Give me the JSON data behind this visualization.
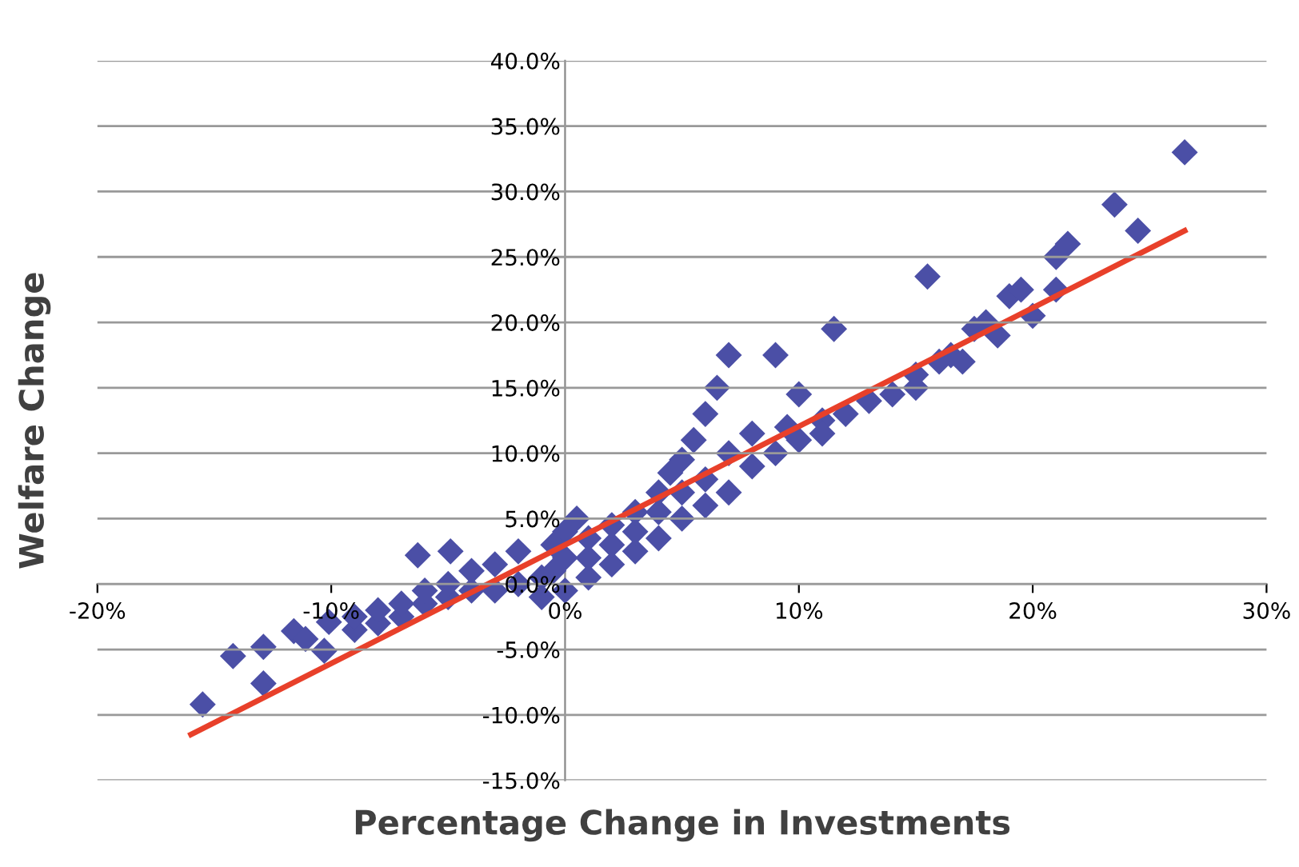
{
  "chart_data": {
    "type": "scatter",
    "xlabel": "Percentage Change in Investments",
    "ylabel": "Welfare Change",
    "xlim": [
      -20,
      30
    ],
    "ylim": [
      -15,
      40
    ],
    "xticks": [
      {
        "value": -20,
        "label": "-20%"
      },
      {
        "value": -10,
        "label": "-10%"
      },
      {
        "value": 0,
        "label": "0%"
      },
      {
        "value": 10,
        "label": "10%"
      },
      {
        "value": 20,
        "label": "20%"
      },
      {
        "value": 30,
        "label": "30%"
      }
    ],
    "yticks": [
      {
        "value": -15,
        "label": "-15.0%"
      },
      {
        "value": -10,
        "label": "-10.0%"
      },
      {
        "value": -5,
        "label": "-5.0%"
      },
      {
        "value": 0,
        "label": "0.0%"
      },
      {
        "value": 5,
        "label": "5.0%"
      },
      {
        "value": 10,
        "label": "10.0%"
      },
      {
        "value": 15,
        "label": "15.0%"
      },
      {
        "value": 20,
        "label": "20.0%"
      },
      {
        "value": 25,
        "label": "25.0%"
      },
      {
        "value": 30,
        "label": "30.0%"
      },
      {
        "value": 35,
        "label": "35.0%"
      },
      {
        "value": 40,
        "label": "40.0%"
      }
    ],
    "grid": "y",
    "marker": "diamond",
    "series": [
      {
        "color": "#4b4fa6",
        "x": [
          -15.5,
          -14.2,
          -12.9,
          -12.9,
          -11.6,
          -11.1,
          -10.3,
          -10.1,
          -6.3,
          -4.9,
          -9,
          -8,
          -7,
          -6,
          -5,
          -4,
          -3,
          -2,
          -1,
          -0.5,
          0,
          0,
          0.5,
          -0.5,
          -2,
          -3,
          -4,
          -5,
          -6,
          -7,
          -8,
          -9,
          -1,
          0,
          1,
          1,
          1,
          2,
          2,
          2,
          3,
          3,
          3,
          4,
          4,
          4,
          4.5,
          5,
          5,
          5,
          5.5,
          6,
          6,
          6.5,
          6,
          7,
          7,
          7,
          8,
          8,
          9,
          9,
          9.5,
          10,
          10,
          11,
          11.5,
          11,
          12,
          13,
          14,
          15,
          15.5,
          15,
          16,
          16.5,
          17,
          17.5,
          18,
          18.5,
          19,
          19.5,
          20,
          21,
          21,
          21.5,
          23.5,
          24.5,
          26.5
        ],
        "values": [
          -9.2,
          -5.5,
          -4.8,
          -7.6,
          -3.6,
          -4.2,
          -5.1,
          -2.9,
          2.2,
          2.5,
          -3.5,
          -3,
          -2.5,
          -1.5,
          -1,
          -0.5,
          -0.5,
          0,
          0.5,
          1,
          2,
          4,
          5,
          3,
          2.5,
          1.5,
          1,
          0,
          -0.5,
          -1.5,
          -2,
          -2.5,
          -1,
          -0.5,
          0.5,
          2,
          3.5,
          1.5,
          3,
          4.5,
          2.5,
          4,
          5.5,
          3.5,
          5.5,
          7,
          8.5,
          5,
          7,
          9.5,
          11,
          13,
          8,
          15,
          6,
          10,
          7,
          17.5,
          9,
          11.5,
          17.5,
          10,
          12,
          14.5,
          11,
          12.5,
          19.5,
          11.5,
          13,
          14,
          14.5,
          16,
          23.5,
          15,
          17,
          17.5,
          17,
          19.5,
          20,
          19,
          22,
          22.5,
          20.5,
          22.5,
          25,
          26,
          29,
          27,
          33
        ]
      },
      {
        "type": "line",
        "color": "#e8402a",
        "marker": "none",
        "x": [
          -16,
          26.5
        ],
        "values": [
          -11.5,
          27
        ]
      }
    ]
  }
}
